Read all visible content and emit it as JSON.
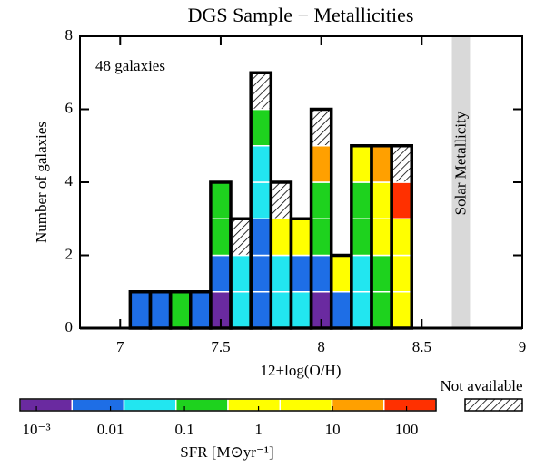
{
  "chart_data": {
    "type": "histogram",
    "title": "DGS Sample − Metallicities",
    "xlabel": "12+log(O/H)",
    "ylabel": "Number of galaxies",
    "annotation": "48 galaxies",
    "band": {
      "label": "Solar Metallicity",
      "range": [
        8.65,
        8.74
      ],
      "color": "#d9d9d9"
    },
    "bins": [
      7.05,
      7.15,
      7.25,
      7.35,
      7.45,
      7.55,
      7.65,
      7.75,
      7.85,
      7.95,
      8.05,
      8.15,
      8.25,
      8.35,
      8.45
    ],
    "counts": [
      1,
      1,
      1,
      1,
      4,
      3,
      7,
      4,
      3,
      6,
      2,
      5,
      5,
      5
    ],
    "stacks": [
      [
        "#1e6ee6"
      ],
      [
        "#1e6ee6"
      ],
      [
        "#1ed21e"
      ],
      [
        "#1e6ee6"
      ],
      [
        "#6a2aa0",
        "#1e6ee6",
        "#1ed21e",
        "#1ed21e"
      ],
      [
        "#22e6f0",
        "#22e6f0",
        "hatch"
      ],
      [
        "#1e6ee6",
        "#1e6ee6",
        "#1e6ee6",
        "#22e6f0",
        "#22e6f0",
        "#1ed21e",
        "hatch"
      ],
      [
        "#22e6f0",
        "#22e6f0",
        "#ffff00",
        "hatch"
      ],
      [
        "#22e6f0",
        "#1e6ee6",
        "#ffff00"
      ],
      [
        "#6a2aa0",
        "#1e6ee6",
        "#1ed21e",
        "#1ed21e",
        "#ffa000",
        "hatch"
      ],
      [
        "#1e6ee6",
        "#ffff00"
      ],
      [
        "#22e6f0",
        "#22e6f0",
        "#1ed21e",
        "#1ed21e",
        "#ffff00"
      ],
      [
        "#1ed21e",
        "#1ed21e",
        "#ffff00",
        "#ffff00",
        "#ffa000"
      ],
      [
        "#ffff00",
        "#ffff00",
        "#ffff00",
        "#ff3000",
        "hatch"
      ]
    ],
    "xlim": [
      6.8,
      9.0
    ],
    "xticks": [
      7,
      7.5,
      8,
      8.5,
      9
    ],
    "ylim": [
      0,
      8
    ],
    "yticks": [
      0,
      2,
      4,
      6,
      8
    ],
    "missing_label": "Not available",
    "colorbar": {
      "label": "SFR [M⊙yr⁻¹]",
      "log": true,
      "lim": [
        0.0006,
        250
      ],
      "colors": [
        "#6a2aa0",
        "#1e6ee6",
        "#22e6f0",
        "#1ed21e",
        "#ffff00",
        "#ffff00",
        "#ffa000",
        "#ff3000"
      ],
      "ticks": [
        {
          "value": 0.001,
          "label": "10⁻³"
        },
        0.01,
        0.1,
        1,
        10,
        100
      ]
    }
  }
}
